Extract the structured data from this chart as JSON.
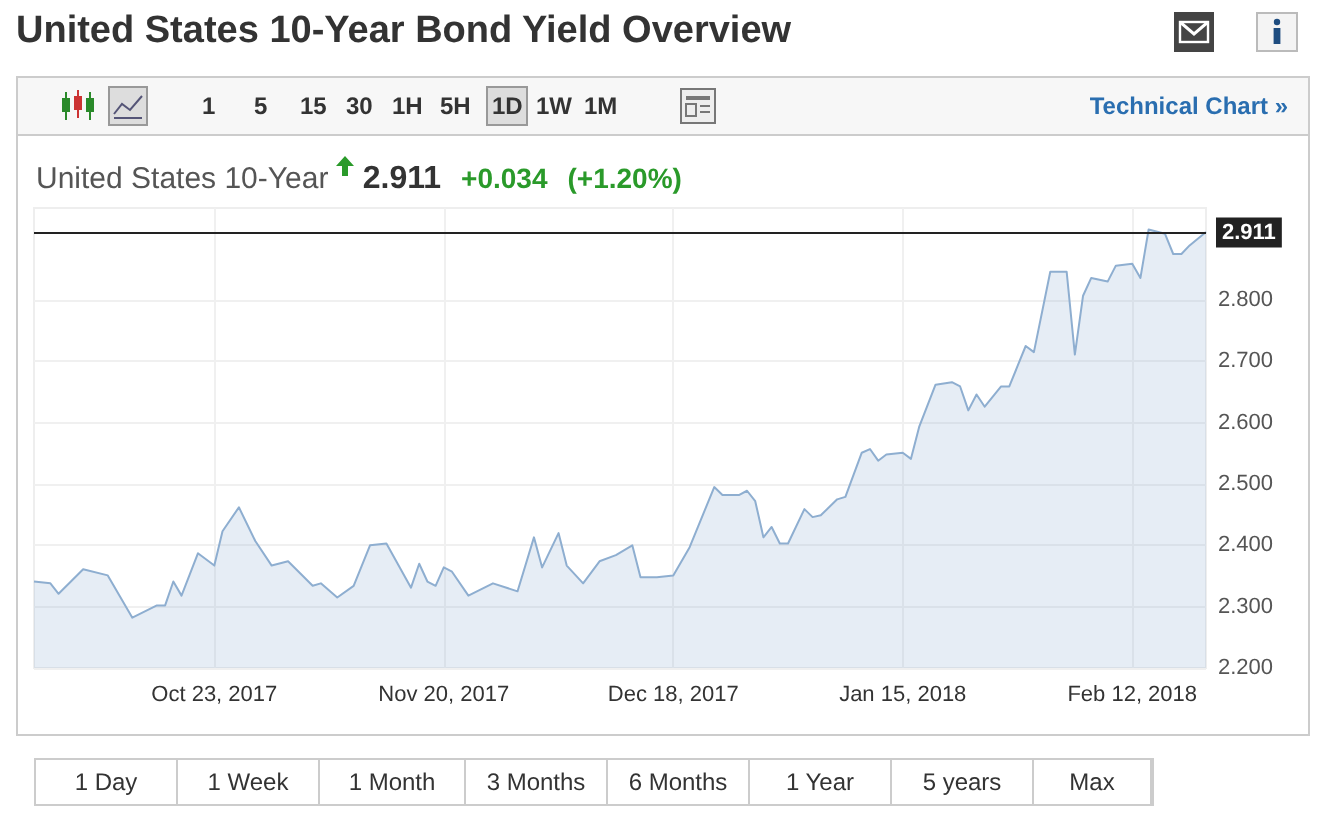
{
  "chart_data": {
    "type": "area",
    "title": "United States 10-Year Bond Yield Overview",
    "subtitle": "United States 10-Year",
    "annotations": [
      "2.911",
      "+0.034",
      "(+1.20%)",
      "Technical Chart »",
      "15",
      "30",
      "1H",
      "5H",
      "1D",
      "1W",
      "1M",
      "1",
      "5",
      "1 Day",
      "1 Week",
      "1 Month",
      "3 Months",
      "6 Months",
      "1 Year",
      "5 years",
      "Max"
    ],
    "x": [
      "2017-10-01",
      "2017-10-03",
      "2017-10-04",
      "2017-10-07",
      "2017-10-10",
      "2017-10-13",
      "2017-10-16",
      "2017-10-17",
      "2017-10-18",
      "2017-10-19",
      "2017-10-21",
      "2017-10-23",
      "2017-10-24",
      "2017-10-26",
      "2017-10-28",
      "2017-10-30",
      "2017-11-01",
      "2017-11-04",
      "2017-11-05",
      "2017-11-07",
      "2017-11-09",
      "2017-11-11",
      "2017-11-13",
      "2017-11-16",
      "2017-11-17",
      "2017-11-18",
      "2017-11-19",
      "2017-11-20",
      "2017-11-21",
      "2017-11-23",
      "2017-11-26",
      "2017-11-29",
      "2017-12-01",
      "2017-12-02",
      "2017-12-04",
      "2017-12-05",
      "2017-12-07",
      "2017-12-09",
      "2017-12-11",
      "2017-12-13",
      "2017-12-14",
      "2017-12-16",
      "2017-12-18",
      "2017-12-20",
      "2017-12-23",
      "2017-12-24",
      "2017-12-26",
      "2017-12-27",
      "2017-12-28",
      "2017-12-29",
      "2017-12-30",
      "2017-12-31",
      "2018-01-01",
      "2018-01-03",
      "2018-01-04",
      "2018-01-05",
      "2018-01-07",
      "2018-01-08",
      "2018-01-10",
      "2018-01-11",
      "2018-01-12",
      "2018-01-13",
      "2018-01-15",
      "2018-01-16",
      "2018-01-17",
      "2018-01-19",
      "2018-01-21",
      "2018-01-22",
      "2018-01-23",
      "2018-01-24",
      "2018-01-25",
      "2018-01-27",
      "2018-01-28",
      "2018-01-29",
      "2018-01-30",
      "2018-01-31",
      "2018-02-02",
      "2018-02-04",
      "2018-02-05",
      "2018-02-06",
      "2018-02-07",
      "2018-02-09",
      "2018-02-10",
      "2018-02-12",
      "2018-02-13",
      "2018-02-14",
      "2018-02-16",
      "2018-02-17",
      "2018-02-18",
      "2018-02-19",
      "2018-02-21"
    ],
    "series": [
      {
        "color": "#8eaed0",
        "values": [
          2.341,
          2.338,
          2.321,
          2.361,
          2.351,
          2.282,
          2.302,
          2.302,
          2.341,
          2.318,
          2.387,
          2.367,
          2.423,
          2.462,
          2.407,
          2.367,
          2.374,
          2.334,
          2.338,
          2.315,
          2.334,
          2.4,
          2.403,
          2.331,
          2.37,
          2.341,
          2.334,
          2.364,
          2.357,
          2.318,
          2.338,
          2.325,
          2.413,
          2.364,
          2.42,
          2.367,
          2.338,
          2.374,
          2.384,
          2.4,
          2.348,
          2.348,
          2.351,
          2.397,
          2.495,
          2.482,
          2.482,
          2.489,
          2.472,
          2.413,
          2.43,
          2.403,
          2.403,
          2.459,
          2.446,
          2.449,
          2.475,
          2.479,
          2.551,
          2.557,
          2.538,
          2.548,
          2.551,
          2.541,
          2.593,
          2.662,
          2.666,
          2.659,
          2.62,
          2.646,
          2.626,
          2.659,
          2.659,
          2.692,
          2.725,
          2.715,
          2.846,
          2.846,
          2.711,
          2.807,
          2.836,
          2.83,
          2.856,
          2.859,
          2.836,
          2.915,
          2.908,
          2.875,
          2.875,
          2.889,
          2.911
        ]
      }
    ],
    "xlim": [
      "2017-10-01",
      "2018-02-21"
    ],
    "xticks": [
      {
        "value": "2017-10-23",
        "label": "Oct 23, 2017"
      },
      {
        "value": "2017-11-20",
        "label": "Nov 20, 2017"
      },
      {
        "value": "2017-12-18",
        "label": "Dec 18, 2017"
      },
      {
        "value": "2018-01-15",
        "label": "Jan 15, 2018"
      },
      {
        "value": "2018-02-12",
        "label": "Feb 12, 2018"
      }
    ],
    "ylim": [
      2.2,
      2.95
    ],
    "yticks": [
      {
        "value": 2.2,
        "label": "2.200"
      },
      {
        "value": 2.3,
        "label": "2.300"
      },
      {
        "value": 2.4,
        "label": "2.400"
      },
      {
        "value": 2.5,
        "label": "2.500"
      },
      {
        "value": 2.6,
        "label": "2.600"
      },
      {
        "value": 2.7,
        "label": "2.700"
      },
      {
        "value": 2.8,
        "label": "2.800"
      }
    ],
    "ref_lines": [
      {
        "axis": "y",
        "value": 2.911,
        "label": "2.911",
        "color": "#222222"
      }
    ],
    "grid": true,
    "marker": "none",
    "line_style": "solid"
  }
}
